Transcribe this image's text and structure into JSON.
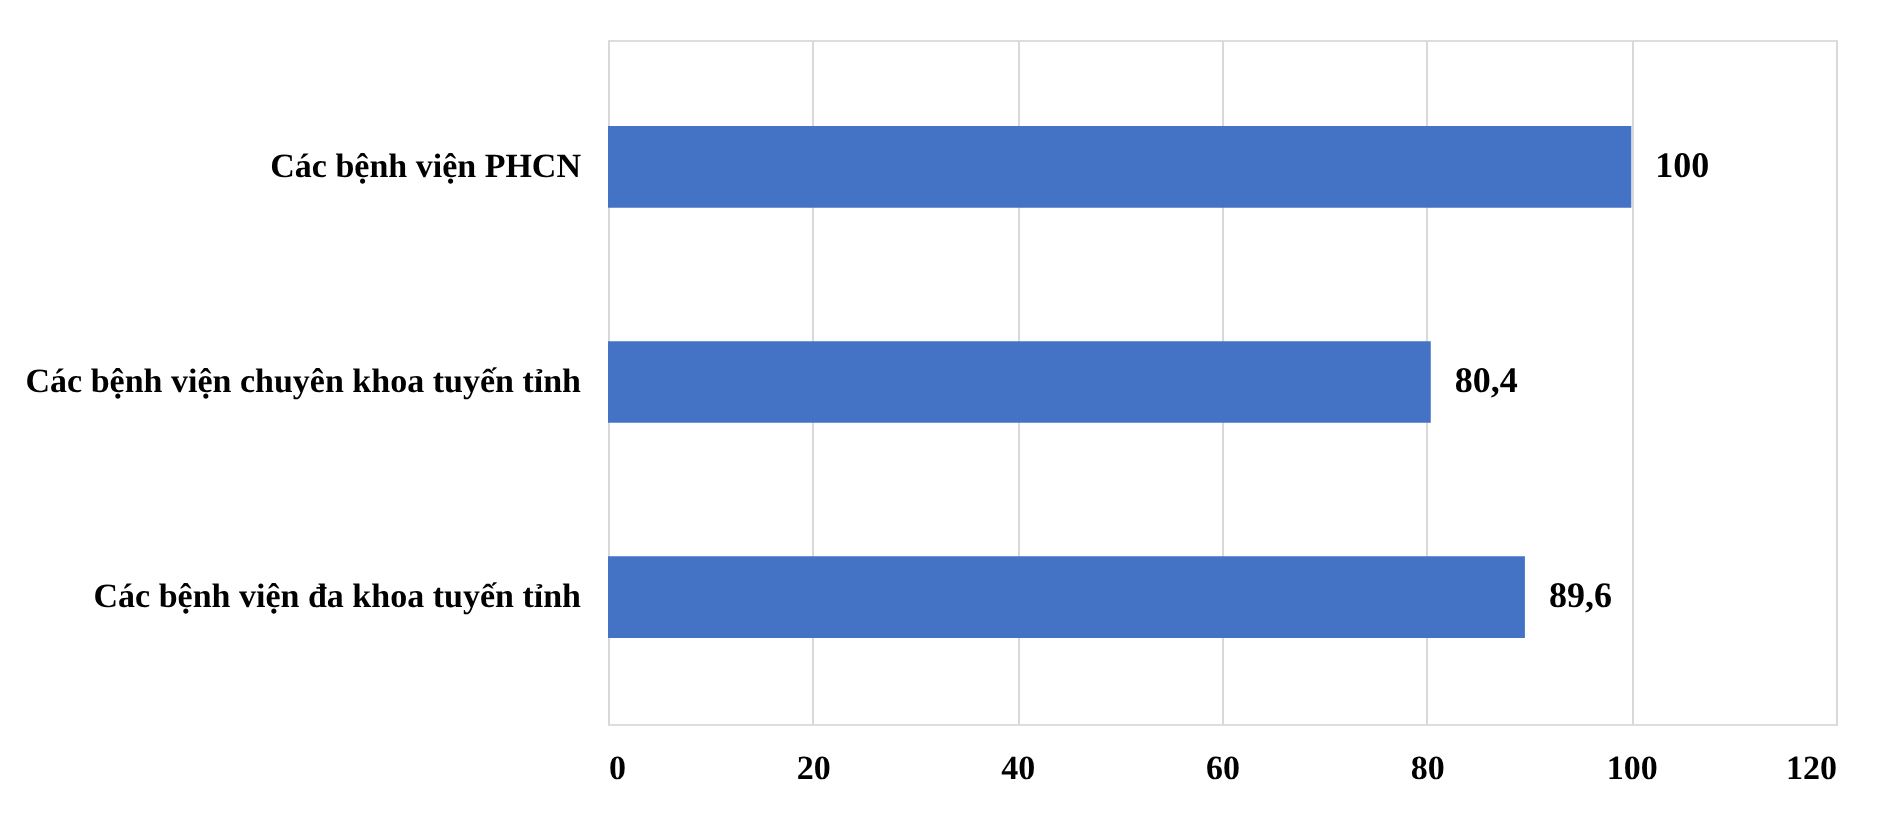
{
  "chart_data": {
    "type": "bar",
    "orientation": "horizontal",
    "categories": [
      "Các bệnh viện PHCN",
      "Các bệnh viện chuyên khoa tuyến tỉnh",
      "Các bệnh viện đa khoa tuyến tỉnh"
    ],
    "values": [
      100,
      80.4,
      89.6
    ],
    "color": "#4472c4",
    "value_labels": [
      "100",
      "80,4",
      "89,6"
    ],
    "xlim": [
      0,
      120
    ],
    "xticks": [
      0,
      20,
      40,
      60,
      80,
      100,
      120
    ],
    "grid": "x"
  }
}
